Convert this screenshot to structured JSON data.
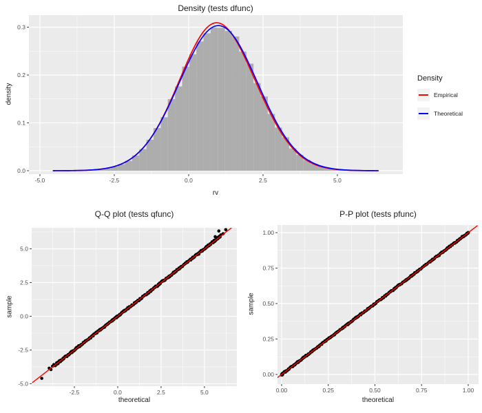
{
  "style": {
    "background": "#FFFFFF",
    "panel_bg": "#EBEBEB",
    "grid_color": "#FFFFFF",
    "tick_label_color": "#4D4D4D",
    "tick_mark_color": "#333333",
    "text_color": "#1A1A1A",
    "histogram_fill": "#ADADAD",
    "empirical_color": "#FF0000",
    "theoretical_color": "#0000FF",
    "legend_key_fill": "#F2F2F2"
  },
  "chart_data": [
    {
      "id": "density",
      "type": "area",
      "title": "Density (tests dfunc)",
      "xlabel": "rv",
      "ylabel": "density",
      "xticks": [
        -5.0,
        -2.5,
        0.0,
        2.5,
        5.0
      ],
      "xtick_labels": [
        "-5.0",
        "-2.5",
        "0.0",
        "2.5",
        "5.0"
      ],
      "yticks": [
        0.0,
        0.1,
        0.2,
        0.3
      ],
      "ytick_labels": [
        "0.0",
        "0.1",
        "0.2",
        "0.3"
      ],
      "xlim": [
        -5.37,
        7.2
      ],
      "ylim": [
        -0.0072,
        0.3252
      ],
      "grid": true,
      "legend_position": "right",
      "histogram": {
        "fill": "#ADADAD",
        "bin_width": 0.24,
        "bins": [
          [
            -4.42,
            0.0001
          ],
          [
            -4.18,
            0.0002
          ],
          [
            -3.94,
            0.0003
          ],
          [
            -3.7,
            0.0005
          ],
          [
            -3.46,
            0.001
          ],
          [
            -3.22,
            0.0017
          ],
          [
            -2.98,
            0.0031
          ],
          [
            -2.74,
            0.005
          ],
          [
            -2.5,
            0.0085
          ],
          [
            -2.26,
            0.0135
          ],
          [
            -2.02,
            0.0205
          ],
          [
            -1.78,
            0.0318
          ],
          [
            -1.54,
            0.0452
          ],
          [
            -1.3,
            0.0648
          ],
          [
            -1.06,
            0.0892
          ],
          [
            -0.82,
            0.1118
          ],
          [
            -0.58,
            0.1498
          ],
          [
            -0.34,
            0.1762
          ],
          [
            -0.1,
            0.2176
          ],
          [
            0.14,
            0.2435
          ],
          [
            0.38,
            0.2702
          ],
          [
            0.62,
            0.2872
          ],
          [
            0.86,
            0.2992
          ],
          [
            1.1,
            0.2988
          ],
          [
            1.34,
            0.2923
          ],
          [
            1.58,
            0.2806
          ],
          [
            1.82,
            0.2492
          ],
          [
            2.06,
            0.2238
          ],
          [
            2.3,
            0.1832
          ],
          [
            2.54,
            0.1552
          ],
          [
            2.78,
            0.1188
          ],
          [
            3.02,
            0.0902
          ],
          [
            3.26,
            0.0698
          ],
          [
            3.5,
            0.0466
          ],
          [
            3.74,
            0.0332
          ],
          [
            3.98,
            0.0224
          ],
          [
            4.22,
            0.0142
          ],
          [
            4.46,
            0.0089
          ],
          [
            4.7,
            0.0052
          ],
          [
            4.94,
            0.003
          ],
          [
            5.18,
            0.0017
          ],
          [
            5.42,
            0.0009
          ],
          [
            5.66,
            0.0005
          ],
          [
            5.9,
            0.0002
          ],
          [
            6.14,
            0.0001
          ]
        ]
      },
      "series": [
        {
          "name": "Empirical",
          "color": "#FF0000",
          "kind": "normal_pdf",
          "mean": 0.97,
          "sd": 1.3,
          "peak": 0.307,
          "range": [
            -4.55,
            6.4
          ],
          "wiggle_amp": 0.012,
          "wiggle_freq": 1.9,
          "wiggle_phase": 0.6
        },
        {
          "name": "Theoretical",
          "color": "#0000FF",
          "kind": "normal_pdf",
          "mean": 1.0,
          "sd": 1.315,
          "peak": 0.303,
          "range": [
            -4.55,
            6.4
          ]
        }
      ],
      "legend": {
        "title": "Density",
        "entries": [
          {
            "label": "Empirical",
            "color": "#FF0000"
          },
          {
            "label": "Theoretical",
            "color": "#0000FF"
          }
        ]
      }
    },
    {
      "id": "qq",
      "type": "scatter",
      "title": "Q-Q plot (tests qfunc)",
      "xlabel": "theoretical",
      "ylabel": "sample",
      "xticks": [
        -2.5,
        0.0,
        2.5,
        5.0
      ],
      "xtick_labels": [
        "-2.5",
        "0.0",
        "2.5",
        "5.0"
      ],
      "yticks": [
        -5.0,
        -2.5,
        0.0,
        2.5,
        5.0
      ],
      "ytick_labels": [
        "-5.0",
        "-2.5",
        "0.0",
        "2.5",
        "5.0"
      ],
      "xlim": [
        -4.96,
        6.87
      ],
      "ylim": [
        -5.18,
        6.555
      ],
      "grid": true,
      "point_color": "#000000",
      "point_band": {
        "from": -3.5,
        "to": 5.9,
        "n": 330,
        "jitter": 0.06
      },
      "points": [
        [
          -4.38,
          -4.6
        ],
        [
          -3.95,
          -3.85
        ],
        [
          -3.85,
          -3.95
        ],
        [
          -3.76,
          -3.7
        ],
        [
          -3.68,
          -3.58
        ],
        [
          -3.6,
          -3.66
        ],
        [
          -3.52,
          -3.46
        ],
        [
          -3.44,
          -3.4
        ],
        [
          -3.36,
          -3.38
        ],
        [
          5.45,
          5.52
        ],
        [
          5.55,
          5.62
        ],
        [
          5.62,
          5.9
        ],
        [
          5.78,
          5.85
        ],
        [
          5.83,
          6.32
        ],
        [
          5.95,
          6.03
        ],
        [
          6.08,
          6.12
        ],
        [
          6.23,
          6.42
        ]
      ],
      "ref_line": {
        "color": "#FF0000",
        "x1": -4.93,
        "y1": -4.93,
        "x2": 6.62,
        "y2": 6.62
      }
    },
    {
      "id": "pp",
      "type": "scatter",
      "title": "P-P plot (tests pfunc)",
      "xlabel": "theoretical",
      "ylabel": "sample",
      "xticks": [
        0.0,
        0.25,
        0.5,
        0.75,
        1.0
      ],
      "xtick_labels": [
        "0.00",
        "0.25",
        "0.50",
        "0.75",
        "1.00"
      ],
      "yticks": [
        0.0,
        0.25,
        0.5,
        0.75,
        1.0
      ],
      "ytick_labels": [
        "0.00",
        "0.25",
        "0.50",
        "0.75",
        "1.00"
      ],
      "xlim": [
        -0.022,
        1.0554
      ],
      "ylim": [
        -0.068,
        1.0534
      ],
      "grid": true,
      "point_color": "#000000",
      "point_band": {
        "from": 0.0,
        "to": 1.0,
        "n": 340,
        "jitter": 0.0045
      },
      "points": [
        [
          0.0,
          0.0
        ],
        [
          0.003,
          -0.004
        ],
        [
          0.997,
          0.994
        ],
        [
          1.0,
          1.0
        ]
      ],
      "ref_line": {
        "color": "#FF0000",
        "x1": -0.05,
        "y1": -0.05,
        "x2": 1.05,
        "y2": 1.05
      }
    }
  ]
}
